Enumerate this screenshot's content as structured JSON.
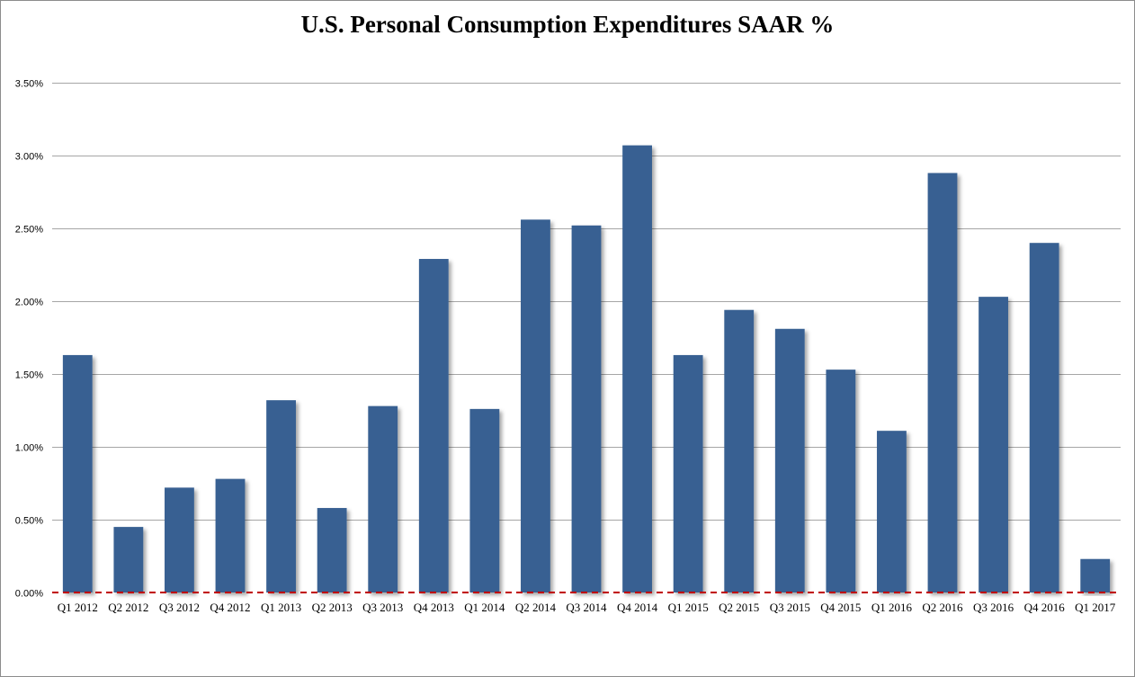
{
  "chart_data": {
    "type": "bar",
    "title": "U.S. Personal Consumption Expenditures SAAR %",
    "xlabel": "",
    "ylabel": "",
    "ylim": [
      0,
      3.5
    ],
    "yticks": [
      0,
      0.5,
      1.0,
      1.5,
      2.0,
      2.5,
      3.0,
      3.5
    ],
    "ytick_labels": [
      "0.00%",
      "0.50%",
      "1.00%",
      "1.50%",
      "2.00%",
      "2.50%",
      "3.00%",
      "3.50%"
    ],
    "grid": true,
    "categories": [
      "Q1 2012",
      "Q2 2012",
      "Q3 2012",
      "Q4 2012",
      "Q1 2013",
      "Q2 2013",
      "Q3 2013",
      "Q4 2013",
      "Q1 2014",
      "Q2 2014",
      "Q3 2014",
      "Q4 2014",
      "Q1 2015",
      "Q2 2015",
      "Q3 2015",
      "Q4 2015",
      "Q1 2016",
      "Q2 2016",
      "Q3 2016",
      "Q4 2016",
      "Q1 2017"
    ],
    "values": [
      1.63,
      0.45,
      0.72,
      0.78,
      1.32,
      0.58,
      1.28,
      2.29,
      1.26,
      2.56,
      2.52,
      3.07,
      1.63,
      1.94,
      1.81,
      1.53,
      1.11,
      2.88,
      2.03,
      2.4,
      0.23
    ],
    "colors": {
      "bar": "#376092",
      "grid": "#a6a6a6",
      "zero_line": "#c00000"
    }
  }
}
